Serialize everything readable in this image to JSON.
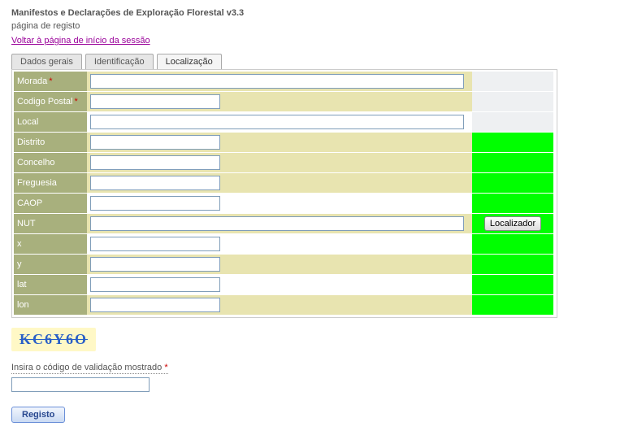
{
  "header": {
    "title": "Manifestos e Declarações de Exploração Florestal v3.3",
    "subtitle": "página de registo",
    "back_link": "Voltar à página de início da sessão"
  },
  "tabs": {
    "general": "Dados gerais",
    "ident": "Identificação",
    "loc": "Localização",
    "active": "loc"
  },
  "form": {
    "rows": [
      {
        "key": "morada",
        "label": "Morada",
        "required": true,
        "input_width": "long",
        "mid_bg": "beige",
        "right_bg": "grey"
      },
      {
        "key": "codpostal",
        "label": "Codigo Postal",
        "required": true,
        "input_width": "short",
        "mid_bg": "beige",
        "right_bg": "grey"
      },
      {
        "key": "local",
        "label": "Local",
        "required": false,
        "input_width": "long",
        "mid_bg": "white",
        "right_bg": "grey"
      },
      {
        "key": "distrito",
        "label": "Distrito",
        "required": false,
        "input_width": "short",
        "mid_bg": "beige",
        "right_bg": "green"
      },
      {
        "key": "concelho",
        "label": "Concelho",
        "required": false,
        "input_width": "short",
        "mid_bg": "beige",
        "right_bg": "green"
      },
      {
        "key": "freguesia",
        "label": "Freguesia",
        "required": false,
        "input_width": "short",
        "mid_bg": "beige",
        "right_bg": "green"
      },
      {
        "key": "caop",
        "label": "CAOP",
        "required": false,
        "input_width": "short",
        "mid_bg": "white",
        "right_bg": "green"
      },
      {
        "key": "nut",
        "label": "NUT",
        "required": false,
        "input_width": "long",
        "mid_bg": "beige",
        "right_bg": "green",
        "right_button": "Localizador"
      },
      {
        "key": "x",
        "label": "x",
        "required": false,
        "input_width": "short",
        "mid_bg": "white",
        "right_bg": "green"
      },
      {
        "key": "y",
        "label": "y",
        "required": false,
        "input_width": "short",
        "mid_bg": "beige",
        "right_bg": "green"
      },
      {
        "key": "lat",
        "label": "lat",
        "required": false,
        "input_width": "short",
        "mid_bg": "white",
        "right_bg": "green"
      },
      {
        "key": "lon",
        "label": "lon",
        "required": false,
        "input_width": "short",
        "mid_bg": "beige",
        "right_bg": "green"
      }
    ],
    "localizador_label": "Localizador"
  },
  "captcha": {
    "code": "KC6Y6O",
    "instruction": "Insira o código de validação mostrado",
    "value": ""
  },
  "submit_label": "Registo",
  "colors": {
    "label_bg": "#a8b07d",
    "beige": "#e8e4b0",
    "green": "#00ff00",
    "grey": "#eef0f2",
    "link": "#990099",
    "captcha_bg": "#fff8c6",
    "captcha_text": "#2a5fc7"
  }
}
